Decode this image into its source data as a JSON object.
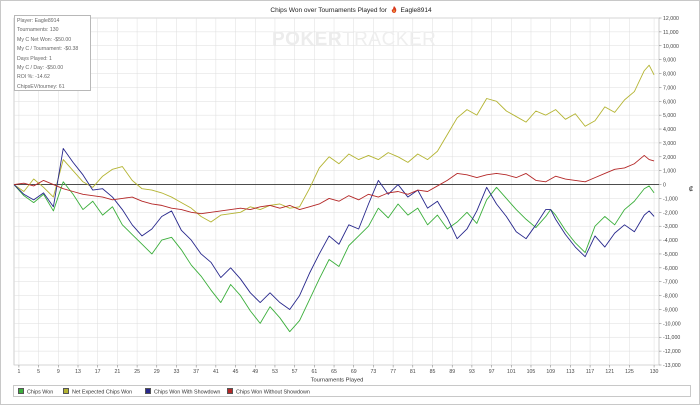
{
  "window": {
    "title_prefix": "Chips Won over Tournaments Played for",
    "player_name": "Eagle8914",
    "watermark_strong": "POKER",
    "watermark_light": "TRACKER"
  },
  "stats": [
    "Player: Eagle8914",
    "Tournaments: 130",
    "My C Net Won: -$50.00",
    "My C / Tournament: -$0.38",
    "Days Played: 1",
    "My C / Day: -$50.00",
    "ROI %: -14.62",
    "ChipsEV/tourney: 61"
  ],
  "colors": {
    "chips_won": "#3caf3c",
    "net_expected": "#b4b432",
    "with_showdown": "#28288c",
    "without_showdown": "#b42828",
    "zero_line": "#333333",
    "grid": "#dddddd"
  },
  "chart_data": {
    "type": "line",
    "title": "Chips Won over Tournaments Played for Eagle8914",
    "xlabel": "Tournaments Played",
    "ylabel": "",
    "y_axis_unit_symbol": "₡",
    "xlim": [
      0,
      131
    ],
    "ylim": [
      -13000,
      12000
    ],
    "x_ticks": [
      1,
      5,
      9,
      13,
      17,
      21,
      25,
      29,
      33,
      37,
      41,
      45,
      49,
      53,
      57,
      61,
      65,
      69,
      73,
      77,
      81,
      85,
      89,
      93,
      97,
      101,
      105,
      109,
      113,
      117,
      121,
      125,
      130
    ],
    "y_ticks": [
      12000,
      11000,
      10000,
      9000,
      8000,
      7000,
      6000,
      5000,
      4000,
      3000,
      2000,
      1000,
      0,
      -1000,
      -2000,
      -3000,
      -4000,
      -5000,
      -6000,
      -7000,
      -8000,
      -9000,
      -10000,
      -11000,
      -12000,
      -13000
    ],
    "y_tick_labels": [
      "12,000",
      "11,000",
      "10,000",
      "9,000",
      "8,000",
      "7,000",
      "6,000",
      "5,000",
      "4,000",
      "3,000",
      "2,000",
      "1,000",
      "0",
      "-1,000",
      "-2,000",
      "-3,000",
      "-4,000",
      "-5,000",
      "-6,000",
      "-7,000",
      "-8,000",
      "-9,000",
      "-10,000",
      "-11,000",
      "-12,000",
      "-13,000"
    ],
    "grid": true,
    "legend_position": "bottom",
    "series": [
      {
        "name": "Chips Won",
        "color": "#3caf3c",
        "points": [
          [
            0,
            0
          ],
          [
            2,
            -800
          ],
          [
            4,
            -1300
          ],
          [
            6,
            -700
          ],
          [
            8,
            -1900
          ],
          [
            10,
            200
          ],
          [
            12,
            -700
          ],
          [
            14,
            -1800
          ],
          [
            16,
            -1200
          ],
          [
            18,
            -2200
          ],
          [
            20,
            -1600
          ],
          [
            22,
            -2900
          ],
          [
            24,
            -3600
          ],
          [
            26,
            -4300
          ],
          [
            28,
            -5000
          ],
          [
            30,
            -4000
          ],
          [
            32,
            -3800
          ],
          [
            34,
            -4700
          ],
          [
            36,
            -5800
          ],
          [
            38,
            -6600
          ],
          [
            40,
            -7600
          ],
          [
            42,
            -8500
          ],
          [
            44,
            -7200
          ],
          [
            46,
            -8000
          ],
          [
            48,
            -9100
          ],
          [
            50,
            -10000
          ],
          [
            52,
            -8800
          ],
          [
            54,
            -9600
          ],
          [
            56,
            -10600
          ],
          [
            58,
            -9800
          ],
          [
            60,
            -8300
          ],
          [
            62,
            -6800
          ],
          [
            64,
            -5400
          ],
          [
            66,
            -5900
          ],
          [
            68,
            -4400
          ],
          [
            70,
            -3700
          ],
          [
            72,
            -3000
          ],
          [
            74,
            -1700
          ],
          [
            76,
            -2400
          ],
          [
            78,
            -1400
          ],
          [
            80,
            -2200
          ],
          [
            82,
            -1700
          ],
          [
            84,
            -2900
          ],
          [
            86,
            -2200
          ],
          [
            88,
            -3200
          ],
          [
            90,
            -2700
          ],
          [
            92,
            -2000
          ],
          [
            94,
            -2800
          ],
          [
            96,
            -1100
          ],
          [
            98,
            -200
          ],
          [
            100,
            -1000
          ],
          [
            102,
            -1800
          ],
          [
            104,
            -2500
          ],
          [
            106,
            -3100
          ],
          [
            108,
            -2300
          ],
          [
            109,
            -1800
          ],
          [
            110,
            -2200
          ],
          [
            112,
            -3300
          ],
          [
            114,
            -4200
          ],
          [
            116,
            -4900
          ],
          [
            118,
            -3000
          ],
          [
            120,
            -2300
          ],
          [
            122,
            -2900
          ],
          [
            124,
            -1800
          ],
          [
            126,
            -1200
          ],
          [
            128,
            -300
          ],
          [
            129,
            -100
          ],
          [
            130,
            -600
          ]
        ]
      },
      {
        "name": "Net Expected Chips Won",
        "color": "#b4b432",
        "points": [
          [
            0,
            0
          ],
          [
            2,
            -500
          ],
          [
            4,
            400
          ],
          [
            6,
            -200
          ],
          [
            8,
            -900
          ],
          [
            10,
            1800
          ],
          [
            12,
            1000
          ],
          [
            14,
            200
          ],
          [
            16,
            -200
          ],
          [
            18,
            600
          ],
          [
            20,
            1100
          ],
          [
            22,
            1300
          ],
          [
            24,
            300
          ],
          [
            26,
            -300
          ],
          [
            28,
            -400
          ],
          [
            30,
            -600
          ],
          [
            32,
            -900
          ],
          [
            34,
            -1300
          ],
          [
            36,
            -1700
          ],
          [
            38,
            -2300
          ],
          [
            40,
            -2700
          ],
          [
            42,
            -2200
          ],
          [
            44,
            -2100
          ],
          [
            46,
            -2000
          ],
          [
            48,
            -1600
          ],
          [
            50,
            -1800
          ],
          [
            52,
            -1500
          ],
          [
            54,
            -1400
          ],
          [
            56,
            -1700
          ],
          [
            58,
            -1600
          ],
          [
            60,
            -300
          ],
          [
            62,
            1200
          ],
          [
            64,
            2000
          ],
          [
            66,
            1500
          ],
          [
            68,
            2200
          ],
          [
            70,
            1800
          ],
          [
            72,
            2100
          ],
          [
            74,
            1800
          ],
          [
            76,
            2300
          ],
          [
            78,
            2000
          ],
          [
            80,
            1600
          ],
          [
            82,
            2200
          ],
          [
            84,
            1800
          ],
          [
            86,
            2400
          ],
          [
            88,
            3600
          ],
          [
            90,
            4800
          ],
          [
            92,
            5400
          ],
          [
            94,
            5000
          ],
          [
            96,
            6200
          ],
          [
            98,
            6000
          ],
          [
            100,
            5300
          ],
          [
            102,
            4900
          ],
          [
            104,
            4500
          ],
          [
            106,
            5300
          ],
          [
            108,
            5000
          ],
          [
            110,
            5400
          ],
          [
            112,
            4700
          ],
          [
            114,
            5100
          ],
          [
            116,
            4200
          ],
          [
            118,
            4600
          ],
          [
            120,
            5600
          ],
          [
            122,
            5200
          ],
          [
            124,
            6100
          ],
          [
            126,
            6700
          ],
          [
            128,
            8200
          ],
          [
            129,
            8600
          ],
          [
            130,
            7900
          ]
        ]
      },
      {
        "name": "Chips Won With Showdown",
        "color": "#28288c",
        "points": [
          [
            0,
            0
          ],
          [
            2,
            -700
          ],
          [
            4,
            -1100
          ],
          [
            6,
            -600
          ],
          [
            8,
            -1600
          ],
          [
            10,
            2600
          ],
          [
            12,
            1600
          ],
          [
            14,
            700
          ],
          [
            16,
            -400
          ],
          [
            18,
            -300
          ],
          [
            20,
            -900
          ],
          [
            22,
            -1800
          ],
          [
            24,
            -2900
          ],
          [
            26,
            -3700
          ],
          [
            28,
            -3200
          ],
          [
            30,
            -2300
          ],
          [
            32,
            -1900
          ],
          [
            34,
            -3300
          ],
          [
            36,
            -4000
          ],
          [
            38,
            -5000
          ],
          [
            40,
            -5600
          ],
          [
            42,
            -6700
          ],
          [
            44,
            -6000
          ],
          [
            46,
            -6800
          ],
          [
            48,
            -7800
          ],
          [
            50,
            -8500
          ],
          [
            52,
            -7800
          ],
          [
            54,
            -8500
          ],
          [
            56,
            -9000
          ],
          [
            58,
            -8000
          ],
          [
            60,
            -6400
          ],
          [
            62,
            -5000
          ],
          [
            64,
            -3700
          ],
          [
            66,
            -4300
          ],
          [
            68,
            -2900
          ],
          [
            70,
            -3200
          ],
          [
            72,
            -1400
          ],
          [
            74,
            300
          ],
          [
            76,
            -700
          ],
          [
            78,
            0
          ],
          [
            80,
            -900
          ],
          [
            82,
            -400
          ],
          [
            84,
            -1700
          ],
          [
            86,
            -1200
          ],
          [
            88,
            -2400
          ],
          [
            90,
            -3900
          ],
          [
            92,
            -3200
          ],
          [
            94,
            -1900
          ],
          [
            96,
            -200
          ],
          [
            98,
            -1400
          ],
          [
            100,
            -2300
          ],
          [
            102,
            -3400
          ],
          [
            104,
            -3900
          ],
          [
            106,
            -2900
          ],
          [
            108,
            -1800
          ],
          [
            109,
            -1800
          ],
          [
            110,
            -2500
          ],
          [
            112,
            -3600
          ],
          [
            114,
            -4500
          ],
          [
            116,
            -5200
          ],
          [
            118,
            -3700
          ],
          [
            120,
            -4500
          ],
          [
            122,
            -3500
          ],
          [
            124,
            -2900
          ],
          [
            126,
            -3400
          ],
          [
            128,
            -2200
          ],
          [
            129,
            -1900
          ],
          [
            130,
            -2300
          ]
        ]
      },
      {
        "name": "Chips Won Without Showdown",
        "color": "#b42828",
        "points": [
          [
            0,
            0
          ],
          [
            2,
            100
          ],
          [
            4,
            -100
          ],
          [
            6,
            300
          ],
          [
            8,
            0
          ],
          [
            10,
            -300
          ],
          [
            12,
            -500
          ],
          [
            14,
            -700
          ],
          [
            16,
            -800
          ],
          [
            18,
            -900
          ],
          [
            20,
            -1100
          ],
          [
            22,
            -1000
          ],
          [
            24,
            -900
          ],
          [
            26,
            -1200
          ],
          [
            28,
            -1400
          ],
          [
            30,
            -1500
          ],
          [
            32,
            -1700
          ],
          [
            34,
            -1800
          ],
          [
            36,
            -2000
          ],
          [
            38,
            -2100
          ],
          [
            40,
            -2000
          ],
          [
            42,
            -1900
          ],
          [
            44,
            -1800
          ],
          [
            46,
            -1700
          ],
          [
            48,
            -1800
          ],
          [
            50,
            -1600
          ],
          [
            52,
            -1500
          ],
          [
            54,
            -1700
          ],
          [
            56,
            -1500
          ],
          [
            58,
            -1800
          ],
          [
            60,
            -1600
          ],
          [
            62,
            -1400
          ],
          [
            64,
            -1000
          ],
          [
            66,
            -1200
          ],
          [
            68,
            -800
          ],
          [
            70,
            -1100
          ],
          [
            72,
            -700
          ],
          [
            74,
            -900
          ],
          [
            76,
            -600
          ],
          [
            78,
            -500
          ],
          [
            80,
            -700
          ],
          [
            82,
            -400
          ],
          [
            84,
            -500
          ],
          [
            86,
            -100
          ],
          [
            88,
            300
          ],
          [
            90,
            800
          ],
          [
            92,
            700
          ],
          [
            94,
            500
          ],
          [
            96,
            700
          ],
          [
            98,
            800
          ],
          [
            100,
            700
          ],
          [
            102,
            500
          ],
          [
            104,
            800
          ],
          [
            106,
            300
          ],
          [
            108,
            200
          ],
          [
            110,
            600
          ],
          [
            112,
            400
          ],
          [
            114,
            300
          ],
          [
            116,
            200
          ],
          [
            118,
            500
          ],
          [
            120,
            800
          ],
          [
            122,
            1100
          ],
          [
            124,
            1200
          ],
          [
            126,
            1500
          ],
          [
            128,
            2100
          ],
          [
            129,
            1800
          ],
          [
            130,
            1700
          ]
        ]
      }
    ]
  }
}
